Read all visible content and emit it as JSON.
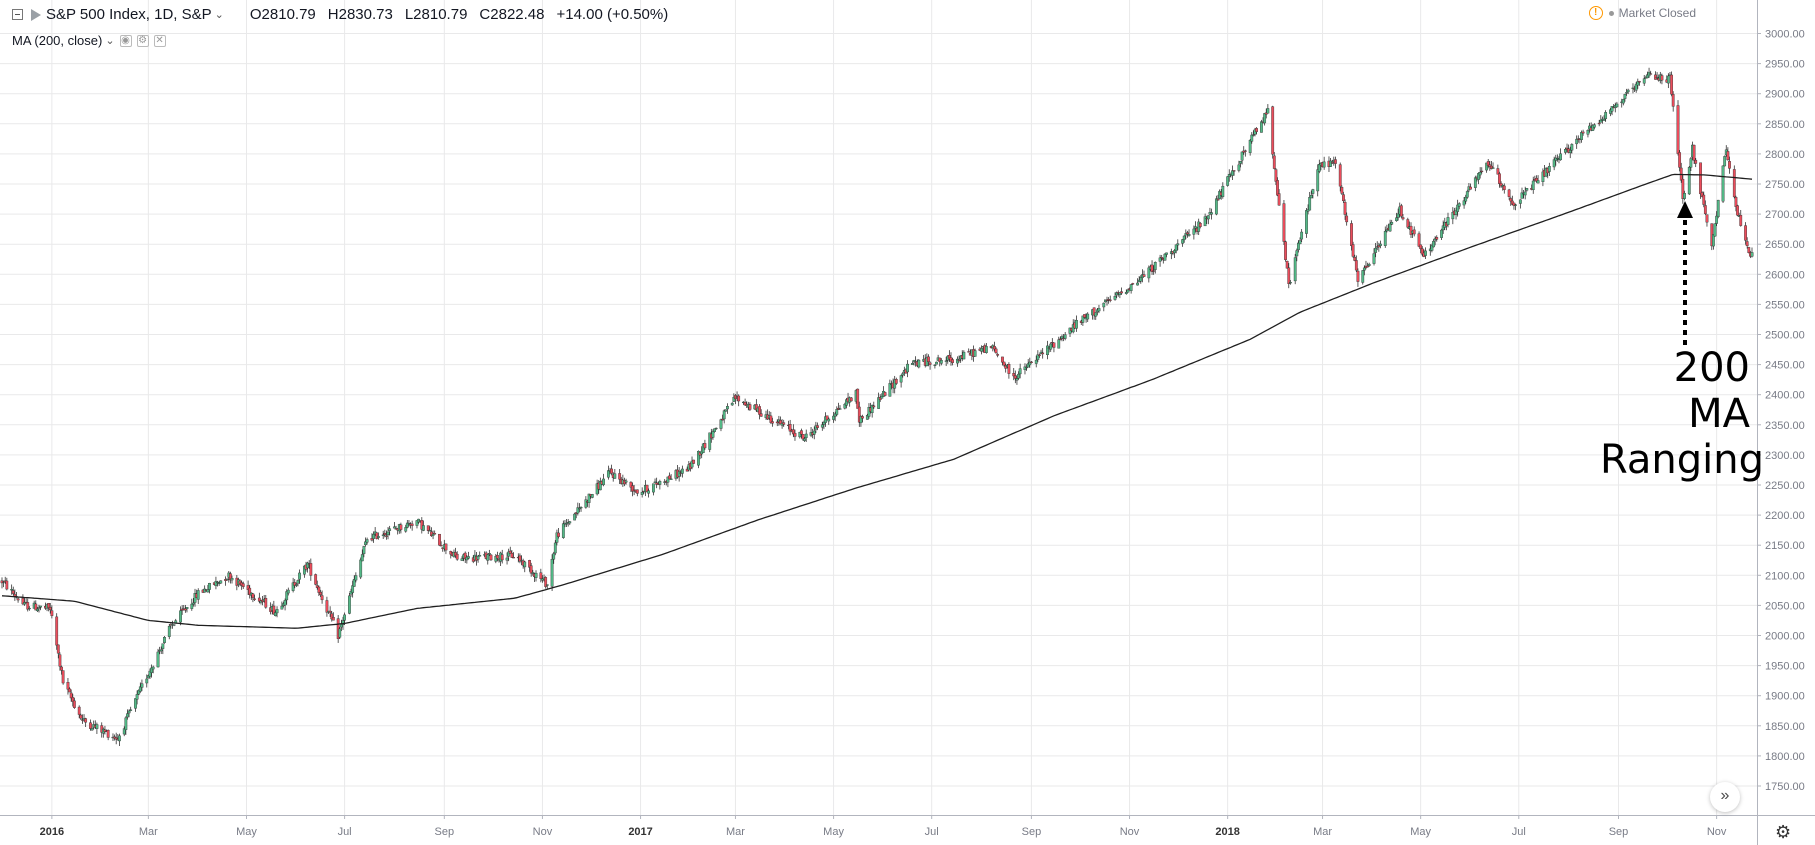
{
  "header": {
    "symbol": "S&P 500 Index, 1D, S&P",
    "open": "O2810.79",
    "high": "H2830.73",
    "low": "L2810.79",
    "close": "C2822.48",
    "change": "+14.00 (+0.50%)",
    "indicator": "MA (200, close)",
    "status": "Market Closed"
  },
  "colors": {
    "up": "#53b987",
    "down": "#eb4d5c",
    "ma": "#1f1f1f",
    "grid": "#e9e9ea",
    "axis": "#787b86"
  },
  "annotation": {
    "line1": "200 MA",
    "line2": "Ranging"
  },
  "chart_data": {
    "type": "candlestick",
    "title": "S&P 500 Index, 1D, S&P",
    "ylim": [
      1750,
      3000
    ],
    "y_ticks": [
      "1750.00",
      "1800.00",
      "1850.00",
      "1900.00",
      "1950.00",
      "2000.00",
      "2050.00",
      "2100.00",
      "2150.00",
      "2200.00",
      "2250.00",
      "2300.00",
      "2350.00",
      "2400.00",
      "2450.00",
      "2500.00",
      "2550.00",
      "2600.00",
      "2650.00",
      "2700.00",
      "2750.00",
      "2800.00",
      "2850.00",
      "2900.00",
      "2950.00",
      "3000.00"
    ],
    "x_ticks": [
      {
        "label": "2016",
        "bold": true
      },
      {
        "label": "Mar"
      },
      {
        "label": "May"
      },
      {
        "label": "Jul"
      },
      {
        "label": "Sep"
      },
      {
        "label": "Nov"
      },
      {
        "label": "2017",
        "bold": true
      },
      {
        "label": "Mar"
      },
      {
        "label": "May"
      },
      {
        "label": "Jul"
      },
      {
        "label": "Sep"
      },
      {
        "label": "Nov"
      },
      {
        "label": "2018",
        "bold": true
      },
      {
        "label": "Mar"
      },
      {
        "label": "May"
      },
      {
        "label": "Jul"
      },
      {
        "label": "Sep"
      },
      {
        "label": "Nov"
      }
    ],
    "close_path": [
      [
        "2015-12-01",
        2090
      ],
      [
        "2015-12-15",
        2050
      ],
      [
        "2015-12-31",
        2044
      ],
      [
        "2016-01-08",
        1922
      ],
      [
        "2016-01-20",
        1859
      ],
      [
        "2016-02-11",
        1829
      ],
      [
        "2016-02-29",
        1932
      ],
      [
        "2016-03-15",
        2015
      ],
      [
        "2016-04-01",
        2070
      ],
      [
        "2016-04-20",
        2100
      ],
      [
        "2016-05-19",
        2040
      ],
      [
        "2016-06-08",
        2119
      ],
      [
        "2016-06-27",
        2000
      ],
      [
        "2016-07-15",
        2161
      ],
      [
        "2016-08-15",
        2190
      ],
      [
        "2016-09-09",
        2128
      ],
      [
        "2016-10-15",
        2133
      ],
      [
        "2016-11-04",
        2085
      ],
      [
        "2016-11-10",
        2167
      ],
      [
        "2016-12-13",
        2271
      ],
      [
        "2016-12-31",
        2238
      ],
      [
        "2017-01-31",
        2278
      ],
      [
        "2017-03-01",
        2395
      ],
      [
        "2017-04-13",
        2328
      ],
      [
        "2017-05-15",
        2402
      ],
      [
        "2017-05-17",
        2357
      ],
      [
        "2017-06-19",
        2453
      ],
      [
        "2017-07-15",
        2459
      ],
      [
        "2017-08-07",
        2480
      ],
      [
        "2017-08-21",
        2428
      ],
      [
        "2017-09-30",
        2519
      ],
      [
        "2017-11-07",
        2591
      ],
      [
        "2017-12-18",
        2690
      ],
      [
        "2018-01-26",
        2872
      ],
      [
        "2018-02-08",
        2581
      ],
      [
        "2018-02-26",
        2779
      ],
      [
        "2018-03-09",
        2786
      ],
      [
        "2018-03-23",
        2588
      ],
      [
        "2018-04-18",
        2708
      ],
      [
        "2018-05-03",
        2630
      ],
      [
        "2018-06-12",
        2786
      ],
      [
        "2018-06-28",
        2716
      ],
      [
        "2018-08-10",
        2833
      ],
      [
        "2018-09-20",
        2930
      ],
      [
        "2018-10-03",
        2925
      ],
      [
        "2018-10-11",
        2728
      ],
      [
        "2018-10-17",
        2809
      ],
      [
        "2018-10-29",
        2641
      ],
      [
        "2018-11-07",
        2813
      ],
      [
        "2018-11-14",
        2700
      ],
      [
        "2018-11-20",
        2641
      ],
      [
        "2018-11-23",
        2632
      ]
    ],
    "ma_path": [
      [
        "2015-12-01",
        2066
      ],
      [
        "2016-01-15",
        2057
      ],
      [
        "2016-03-01",
        2025
      ],
      [
        "2016-04-01",
        2017
      ],
      [
        "2016-06-01",
        2012
      ],
      [
        "2016-07-01",
        2020
      ],
      [
        "2016-08-15",
        2045
      ],
      [
        "2016-10-15",
        2062
      ],
      [
        "2016-11-15",
        2085
      ],
      [
        "2017-01-15",
        2135
      ],
      [
        "2017-03-15",
        2192
      ],
      [
        "2017-05-15",
        2245
      ],
      [
        "2017-07-15",
        2293
      ],
      [
        "2017-09-15",
        2365
      ],
      [
        "2017-11-15",
        2425
      ],
      [
        "2018-01-15",
        2492
      ],
      [
        "2018-02-15",
        2537
      ],
      [
        "2018-04-01",
        2585
      ],
      [
        "2018-06-01",
        2645
      ],
      [
        "2018-08-01",
        2703
      ],
      [
        "2018-09-15",
        2747
      ],
      [
        "2018-10-05",
        2766
      ],
      [
        "2018-10-25",
        2765
      ],
      [
        "2018-11-23",
        2758
      ]
    ],
    "legend": "none",
    "grid": true
  }
}
